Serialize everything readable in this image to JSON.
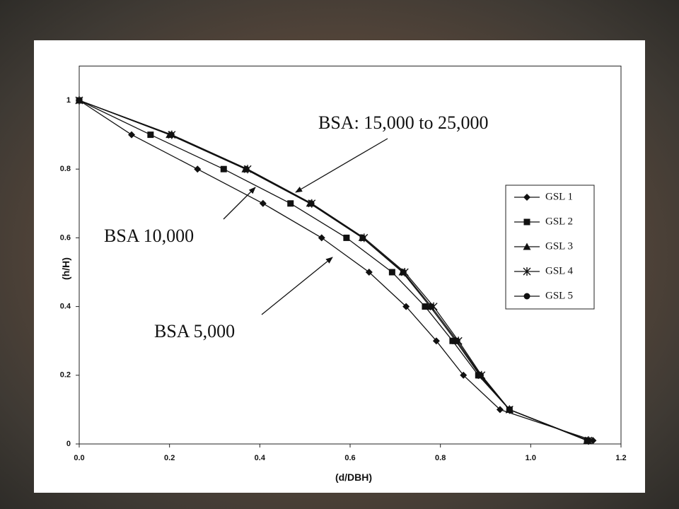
{
  "chart_data": {
    "type": "line",
    "x_label": "(d/DBH)",
    "y_label": "(h/H)",
    "xlim": [
      0,
      1.2
    ],
    "ylim": [
      0,
      1.1
    ],
    "xticks": [
      {
        "value": 0,
        "label": "0.0"
      },
      0.2,
      0.4,
      0.6,
      0.8,
      {
        "value": 1,
        "label": "1.0"
      },
      1.2
    ],
    "yticks": [
      0,
      0.2,
      0.4,
      0.6,
      0.8,
      1
    ],
    "legend": "right",
    "annotations": [
      "BSA: 15,000 to 25,000",
      "BSA 10,000",
      "BSA 5,000"
    ],
    "series": [
      {
        "name": "GSL 1",
        "color": "#111111",
        "marker": "diamond",
        "x": [
          0,
          0.116,
          0.262,
          0.407,
          0.537,
          0.642,
          0.724,
          0.791,
          0.851,
          0.932,
          1.138
        ],
        "values": [
          1,
          0.9,
          0.8,
          0.7,
          0.6,
          0.5,
          0.4,
          0.3,
          0.2,
          0.1,
          0.01
        ]
      },
      {
        "name": "GSL 2",
        "color": "#111111",
        "marker": "square",
        "x": [
          0,
          0.158,
          0.32,
          0.468,
          0.592,
          0.693,
          0.766,
          0.827,
          0.884,
          0.953,
          1.125
        ],
        "values": [
          1,
          0.9,
          0.8,
          0.7,
          0.6,
          0.5,
          0.4,
          0.3,
          0.2,
          0.1,
          0.01
        ]
      },
      {
        "name": "GSL 3",
        "color": "#111111",
        "marker": "triangle",
        "x": [
          0,
          0.2,
          0.368,
          0.511,
          0.627,
          0.716,
          0.777,
          0.834,
          0.887,
          0.953,
          1.125
        ],
        "values": [
          1,
          0.9,
          0.8,
          0.7,
          0.6,
          0.5,
          0.4,
          0.3,
          0.2,
          0.1,
          0.01
        ]
      },
      {
        "name": "GSL 4",
        "color": "#111111",
        "marker": "star",
        "x": [
          0,
          0.205,
          0.373,
          0.515,
          0.631,
          0.721,
          0.785,
          0.84,
          0.891,
          0.953,
          1.128
        ],
        "values": [
          1,
          0.9,
          0.8,
          0.7,
          0.6,
          0.5,
          0.4,
          0.3,
          0.2,
          0.1,
          0.01
        ]
      },
      {
        "name": "GSL 5",
        "color": "#111111",
        "marker": "circle",
        "x": [
          0,
          0.204,
          0.37,
          0.514,
          0.628,
          0.718,
          0.78,
          0.837,
          0.889,
          0.953,
          1.127
        ],
        "values": [
          1,
          0.9,
          0.8,
          0.7,
          0.6,
          0.5,
          0.4,
          0.3,
          0.2,
          0.1,
          0.01
        ]
      }
    ]
  }
}
